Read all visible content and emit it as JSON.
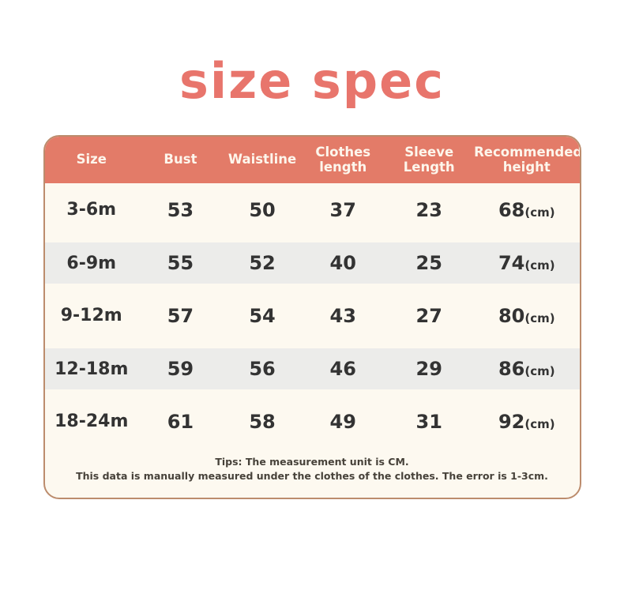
{
  "chart_data": {
    "type": "table",
    "title": "size spec",
    "columns": [
      "Size",
      "Bust",
      "Waistline",
      "Clothes length",
      "Sleeve Length",
      "Recommended height"
    ],
    "rows": [
      [
        "3-6m",
        "53",
        "50",
        "37",
        "23",
        "68"
      ],
      [
        "6-9m",
        "55",
        "52",
        "40",
        "25",
        "74"
      ],
      [
        "9-12m",
        "57",
        "54",
        "43",
        "27",
        "80"
      ],
      [
        "12-18m",
        "59",
        "56",
        "46",
        "29",
        "86"
      ],
      [
        "18-24m",
        "61",
        "58",
        "49",
        "31",
        "92"
      ]
    ],
    "measurement_unit": "cm",
    "notes": [
      "Tips: The measurement unit is CM.",
      "This data is manually measured under the clothes of the clothes. The error is 1-3cm."
    ]
  },
  "header": {
    "columns": [
      {
        "line1": "Size"
      },
      {
        "line1": "Bust"
      },
      {
        "line1": "Waistline"
      },
      {
        "line1": "Clothes",
        "line2": "length"
      },
      {
        "line1": "Sleeve",
        "line2": "Length"
      },
      {
        "line1": "Recommended",
        "line2": "height"
      }
    ]
  },
  "unit_label": "(cm)",
  "colors": {
    "accent_title": "#e8756c",
    "header_bg": "#e37b68",
    "header_text": "#fdf6ec",
    "card_bg": "#fdf9f0",
    "stripe_bg": "#ececea",
    "card_border": "#bc8c6d",
    "body_text": "#333333",
    "tips_text": "#47423a"
  }
}
